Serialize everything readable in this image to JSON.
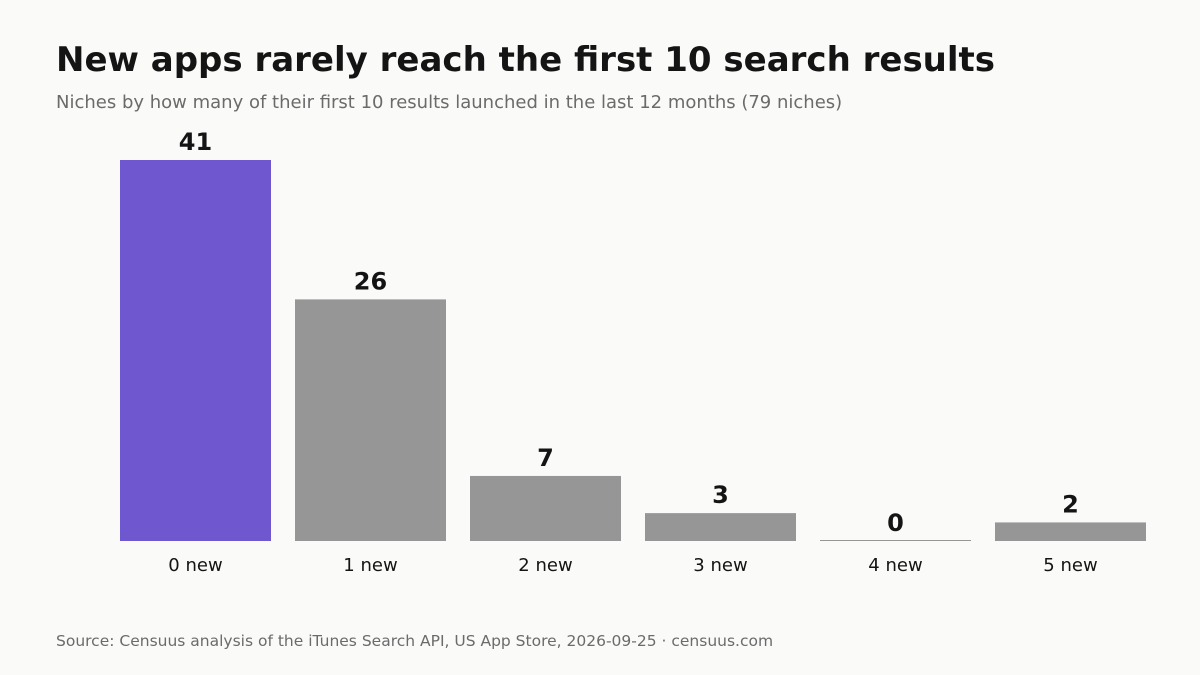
{
  "header": {
    "title": "New apps rarely reach the first 10 search results",
    "subtitle": "Niches by how many of their first 10 results launched in the last 12 months (79 niches)"
  },
  "footer": {
    "source": "Source: Censuus analysis of the iTunes Search API, US App Store, 2026-09-25 · censuus.com"
  },
  "colors": {
    "highlight": "#6e57cf",
    "bar": "#969696",
    "baseline": "#969696"
  },
  "chart_data": {
    "type": "bar",
    "categories": [
      "0 new",
      "1 new",
      "2 new",
      "3 new",
      "4 new",
      "5 new"
    ],
    "values": [
      41,
      26,
      7,
      3,
      0,
      2
    ],
    "highlight_index": 0,
    "title": "New apps rarely reach the first 10 search results",
    "subtitle": "Niches by how many of their first 10 results launched in the last 12 months (79 niches)",
    "xlabel": "",
    "ylabel": "",
    "ylim": [
      0,
      41
    ],
    "grid": false,
    "legend": "none",
    "data_labels": true
  }
}
